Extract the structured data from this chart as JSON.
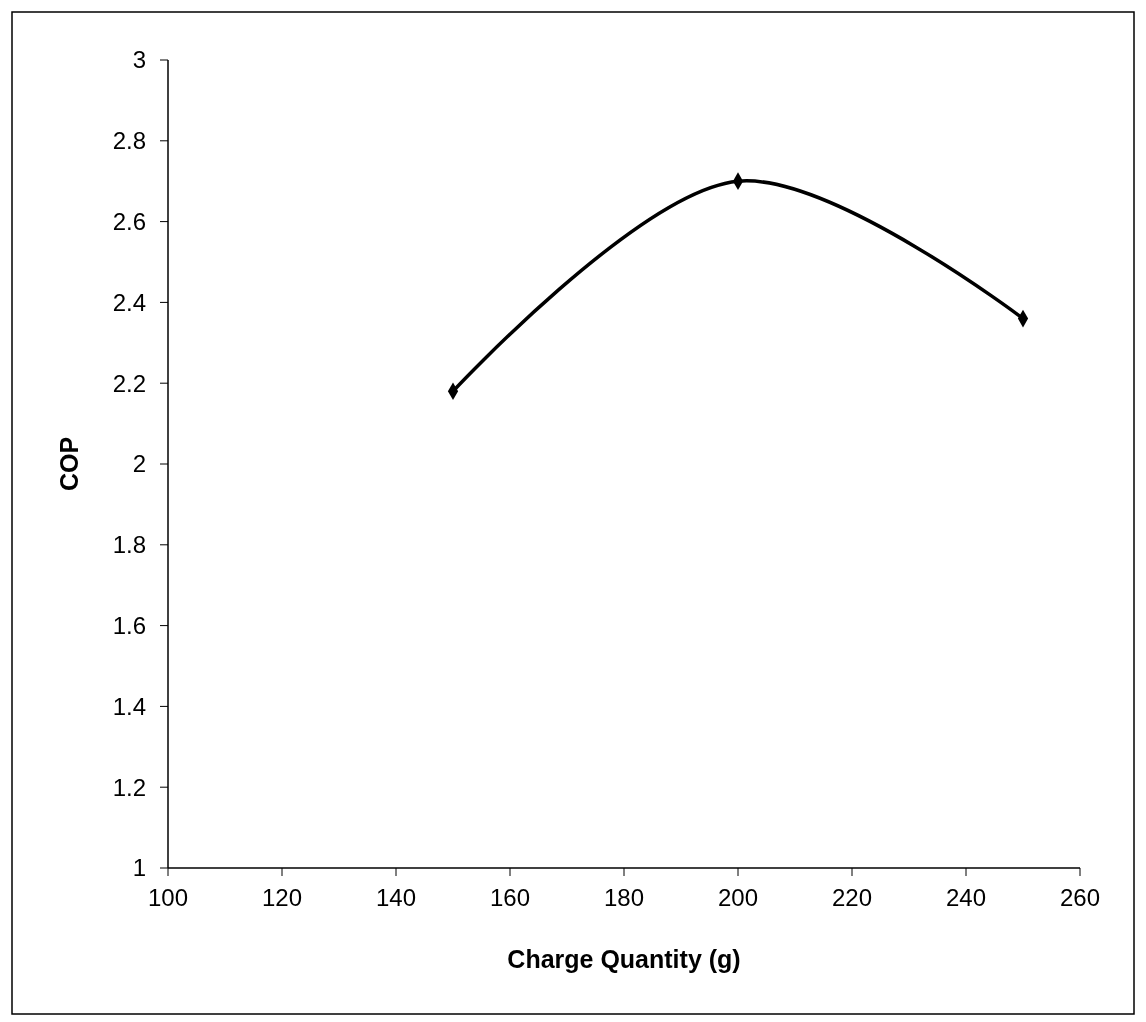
{
  "chart_data": {
    "type": "line",
    "xlabel": "Charge Quantity (g)",
    "ylabel": "COP",
    "x": [
      150,
      200,
      250
    ],
    "series": [
      {
        "color": "#000000",
        "values": [
          2.18,
          2.7,
          2.36
        ]
      }
    ],
    "xlim": [
      100,
      260
    ],
    "xticks": [
      100,
      120,
      140,
      160,
      180,
      200,
      220,
      240,
      260
    ],
    "ylim": [
      1,
      3
    ],
    "yticks": [
      1,
      1.2,
      1.4,
      1.6,
      1.8,
      2,
      2.2,
      2.4,
      2.6,
      2.8,
      3
    ],
    "marker": "diamond",
    "line_style": "solid",
    "grid": false
  }
}
